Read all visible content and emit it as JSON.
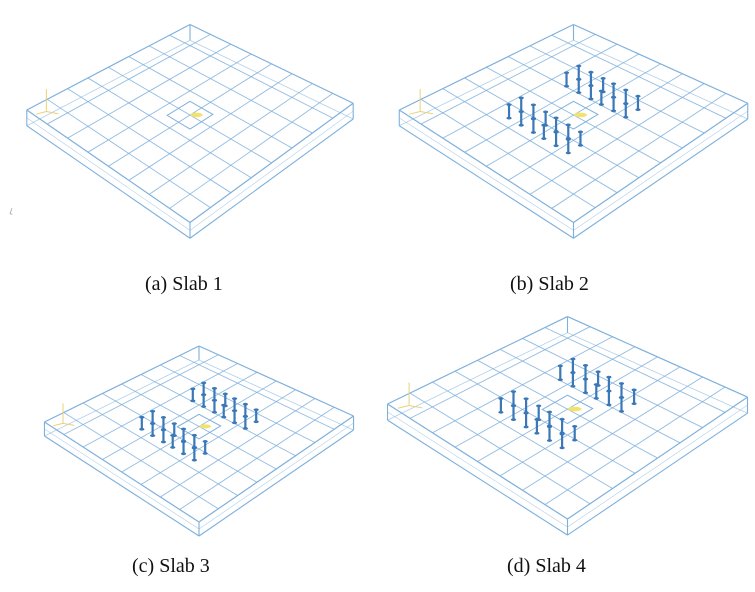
{
  "figure": {
    "panels": [
      {
        "id": "p1",
        "caption": "(a) Slab 1",
        "studs": 0
      },
      {
        "id": "p2",
        "caption": "(b) Slab 2",
        "studs": 24
      },
      {
        "id": "p3",
        "caption": "(c) Slab 3",
        "studs": 24
      },
      {
        "id": "p4",
        "caption": "(d) Slab 4",
        "studs": 24
      }
    ],
    "stray_mark": "⌐"
  },
  "colors": {
    "wireframe": "#7eb0dc",
    "stud": "#3a78b8",
    "load_patch": "#f3e36a",
    "axis_triad": "#e8d27a"
  }
}
